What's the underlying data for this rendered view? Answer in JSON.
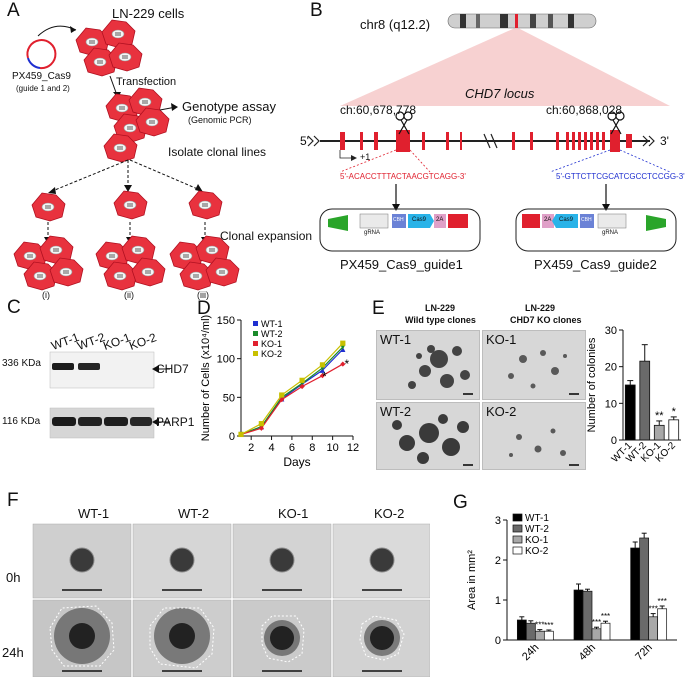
{
  "panelA": {
    "label": "A",
    "title": "LN-229 cells",
    "plasmid": "PX459_Cas9",
    "plasmid_sub": "(guide 1 and 2)",
    "transfection": "Transfection",
    "genotype": "Genotype assay",
    "genotype_sub": "(Genomic PCR)",
    "isolate": "Isolate clonal lines",
    "clonal": "Clonal expansion",
    "roman": [
      "(i)",
      "(ii)",
      "(iii)"
    ]
  },
  "panelB": {
    "label": "B",
    "chrom": "chr8 (q12.2)",
    "locus": "CHD7 locus",
    "coord1": "ch:60,678,778",
    "coord2": "ch:60,868,028",
    "five": "5'",
    "three": "3'",
    "plus1": "+1",
    "guide1_seq": "5'-ACACCTTTACTAACGTCAGG-3'",
    "guide2_seq": "5'-GTTCTTCGCATCGCCTCCGG-3'",
    "plasmid1": "PX459_Cas9_guide1",
    "plasmid2": "PX459_Cas9_guide2",
    "gRNA": "gRNA",
    "cas9": "Cas9",
    "t2a": "2A",
    "cbh": "CBH",
    "colors": {
      "exon": "#e0202e",
      "guide1": "#e0202e",
      "guide2": "#1f2fd0"
    }
  },
  "panelC": {
    "label": "C",
    "lanes": [
      "WT-1",
      "WT-2",
      "KO-1",
      "KO-2"
    ],
    "mw1": "336 KDa",
    "mw2": "116 KDa",
    "band1": "CHD7",
    "band2": "PARP1"
  },
  "panelD": {
    "label": "D",
    "chart_data": {
      "type": "line",
      "xlabel": "Days",
      "ylabel": "Number of Cells (x10⁴/ml)",
      "x": [
        1,
        3,
        5,
        7,
        9,
        11
      ],
      "xticks": [
        2,
        4,
        6,
        8,
        10,
        12
      ],
      "yticks": [
        0,
        50,
        100,
        150
      ],
      "xlim": [
        1,
        12
      ],
      "ylim": [
        0,
        150
      ],
      "series": [
        {
          "name": "WT-1",
          "color": "#1f2fd0",
          "marker": "triangle-up",
          "values": [
            2,
            12,
            48,
            67,
            85,
            112
          ]
        },
        {
          "name": "WT-2",
          "color": "#1a8a2a",
          "marker": "triangle-down",
          "values": [
            2,
            12,
            50,
            68,
            88,
            115
          ]
        },
        {
          "name": "KO-1",
          "color": "#e0202e",
          "marker": "diamond",
          "values": [
            2,
            10,
            47,
            64,
            78,
            93
          ]
        },
        {
          "name": "KO-2",
          "color": "#c8c000",
          "marker": "square",
          "values": [
            2,
            16,
            53,
            72,
            92,
            120
          ]
        }
      ],
      "annotations": [
        "*",
        "*"
      ]
    }
  },
  "panelE": {
    "label": "E",
    "head_wt": "LN-229",
    "head_wt2": "Wild type clones",
    "head_ko": "LN-229",
    "head_ko2": "CHD7 KO clones",
    "img_labels": [
      "WT-1",
      "KO-1",
      "WT-2",
      "KO-2"
    ],
    "chart_data": {
      "type": "bar",
      "categories": [
        "WT-1",
        "WT-2",
        "KO-1",
        "KO-2"
      ],
      "values": [
        15,
        21.5,
        4,
        5.5
      ],
      "errors": [
        1.2,
        4.5,
        1.2,
        0.8
      ],
      "colors": [
        "#000000",
        "#6a6a6a",
        "#a8a8a8",
        "#ffffff"
      ],
      "ylabel": "Number of colonies",
      "yticks": [
        0,
        10,
        20,
        30
      ],
      "ylim": [
        0,
        30
      ],
      "significance": [
        "",
        "",
        "**",
        "*"
      ]
    }
  },
  "panelF": {
    "label": "F",
    "columns": [
      "WT-1",
      "WT-2",
      "KO-1",
      "KO-2"
    ],
    "rows": [
      "0h",
      "24h"
    ]
  },
  "panelG": {
    "label": "G",
    "chart_data": {
      "type": "bar",
      "categories": [
        "24h",
        "48h",
        "72h"
      ],
      "ylabel": "Area in mm²",
      "yticks": [
        0,
        1,
        2,
        3
      ],
      "ylim": [
        0,
        3
      ],
      "series": [
        {
          "name": "WT-1",
          "color": "#000000",
          "values": [
            0.5,
            1.25,
            2.3
          ],
          "errors": [
            0.08,
            0.15,
            0.15
          ]
        },
        {
          "name": "WT-2",
          "color": "#6a6a6a",
          "values": [
            0.42,
            1.22,
            2.55
          ],
          "errors": [
            0.06,
            0.05,
            0.12
          ]
        },
        {
          "name": "KO-1",
          "color": "#a8a8a8",
          "values": [
            0.22,
            0.28,
            0.58
          ],
          "errors": [
            0.04,
            0.04,
            0.08
          ]
        },
        {
          "name": "KO-2",
          "color": "#ffffff",
          "values": [
            0.22,
            0.42,
            0.78
          ],
          "errors": [
            0.03,
            0.05,
            0.07
          ]
        }
      ],
      "significance": [
        "***",
        "***"
      ]
    }
  }
}
